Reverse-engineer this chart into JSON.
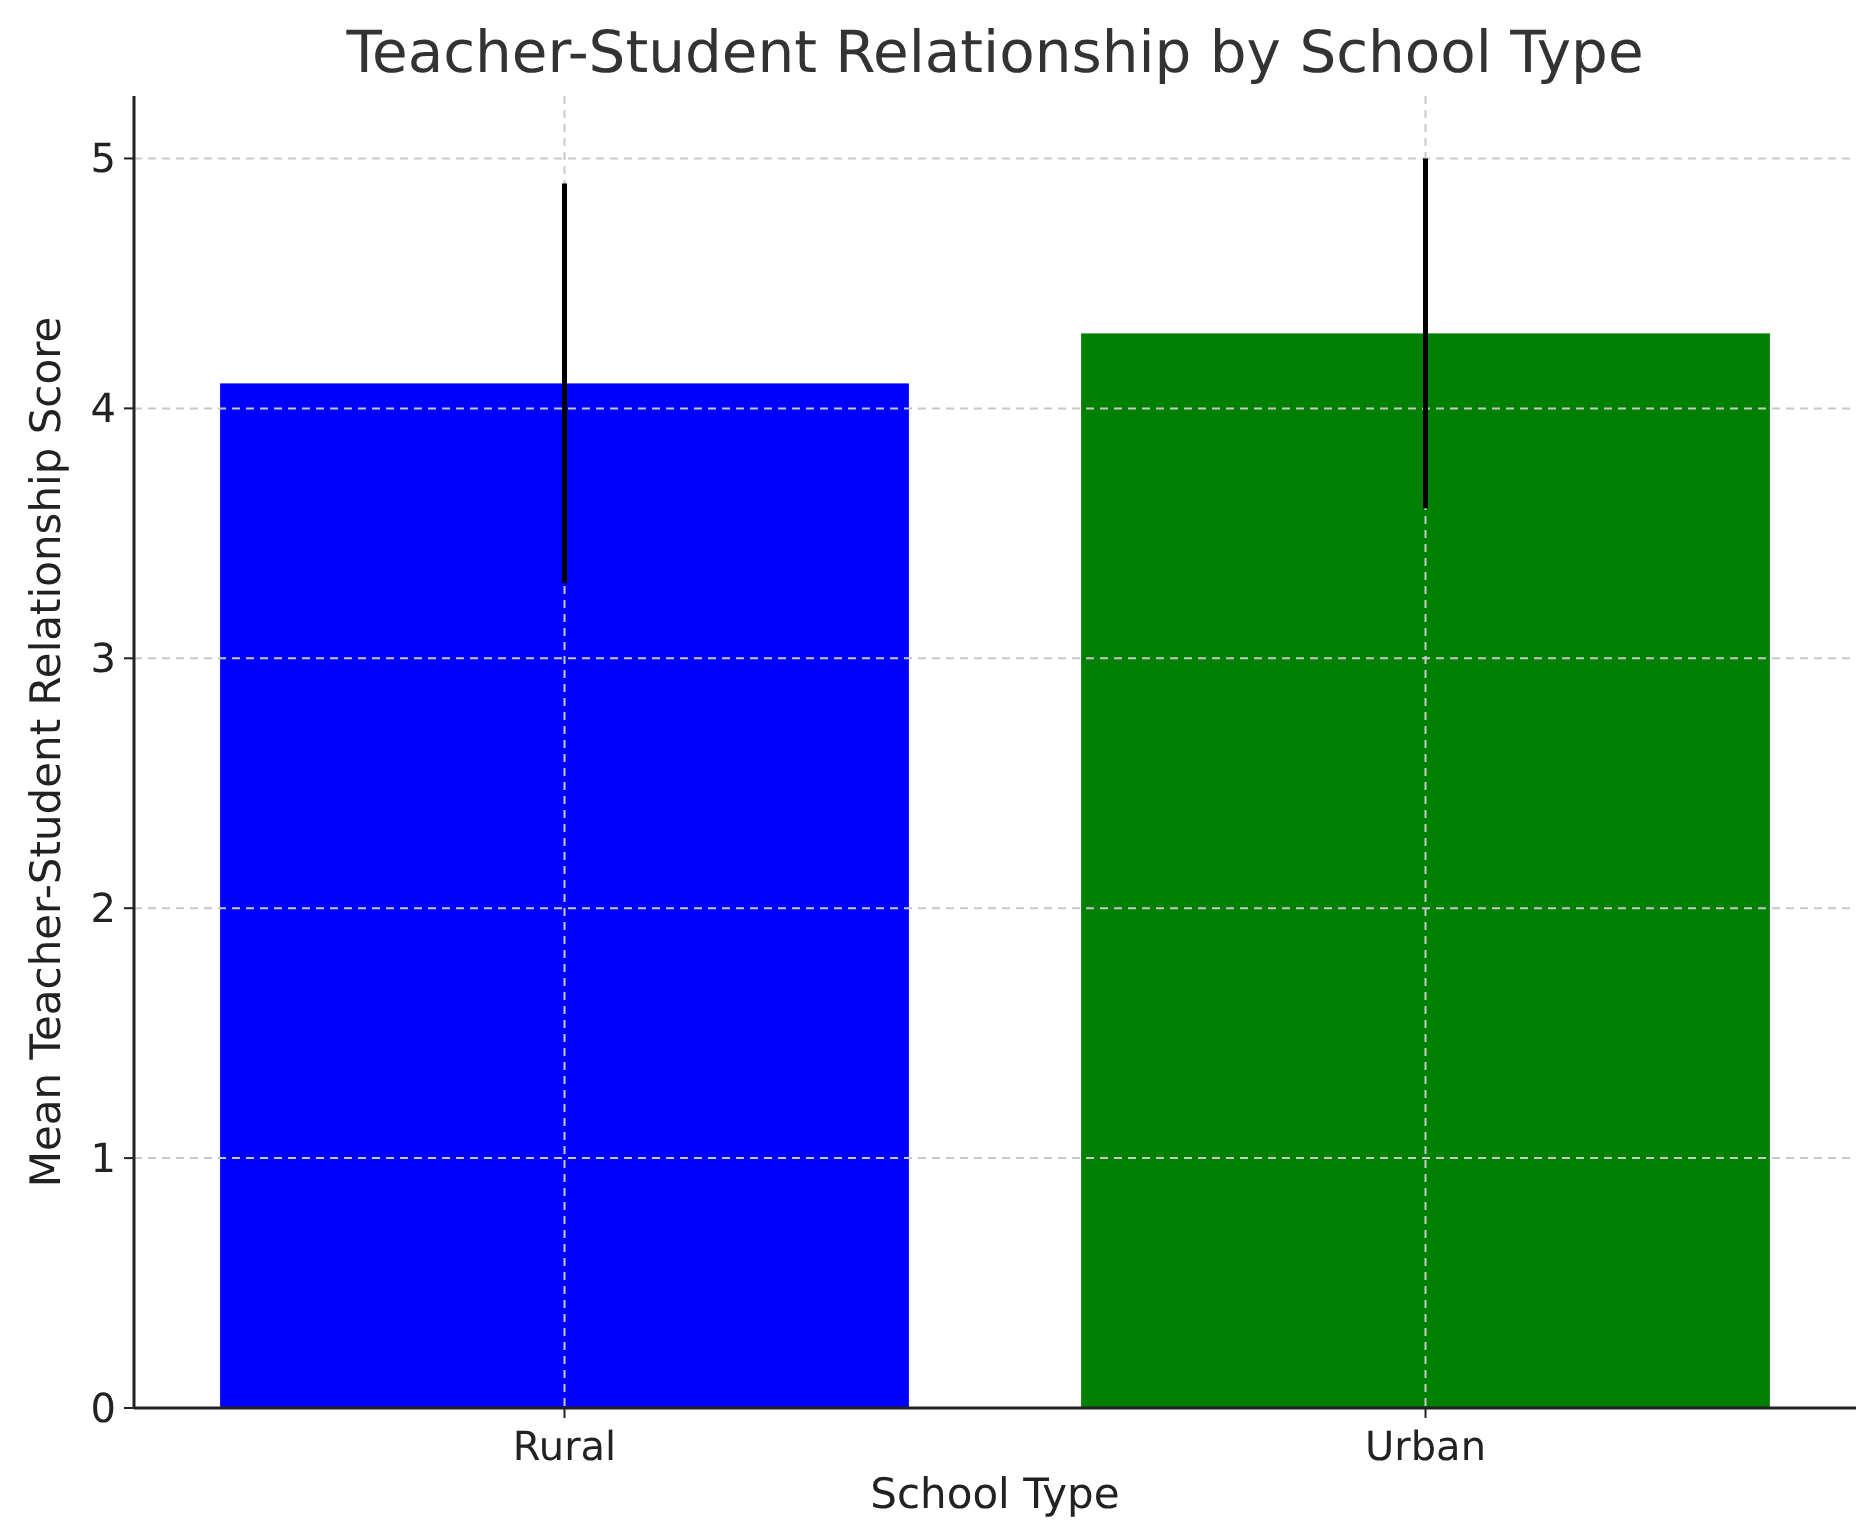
{
  "chart_data": {
    "type": "bar",
    "title": "Teacher-Student Relationship by School Type",
    "xlabel": "School Type",
    "ylabel": "Mean Teacher-Student Relationship Score",
    "categories": [
      "Rural",
      "Urban"
    ],
    "values": [
      4.1,
      4.3
    ],
    "colors": [
      "#0000ff",
      "#008000"
    ],
    "errors": [
      0.8,
      0.7
    ],
    "ylim": [
      0,
      5.25
    ],
    "yticks": [
      0,
      1,
      2,
      3,
      4,
      5
    ],
    "grid": true
  }
}
